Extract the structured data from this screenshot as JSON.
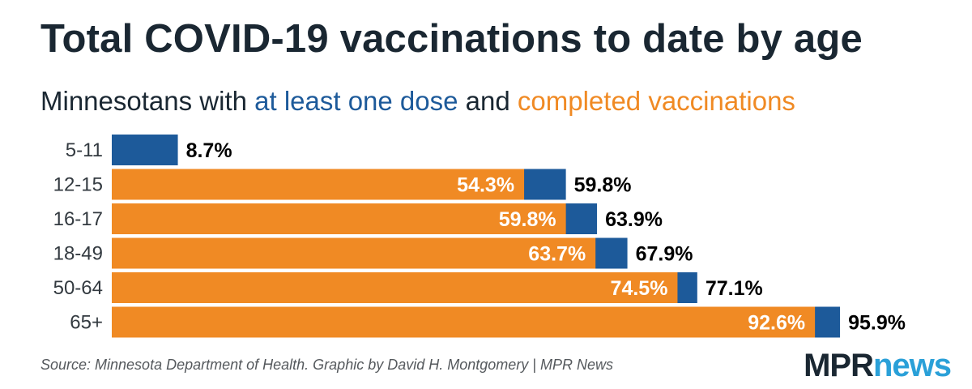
{
  "chart_data": {
    "type": "bar",
    "orientation": "horizontal",
    "title": "Total COVID-19 vaccinations to date by age",
    "subtitle": {
      "prefix": "Minnesotans with ",
      "dose_label": "at least one dose",
      "middle": " and ",
      "complete_label": "completed vaccinations"
    },
    "categories": [
      "5-11",
      "12-15",
      "16-17",
      "18-49",
      "50-64",
      "65+"
    ],
    "series": [
      {
        "name": "at least one dose",
        "color": "#1d5a9a",
        "values": [
          8.7,
          59.8,
          63.9,
          67.9,
          77.1,
          95.9
        ],
        "labels": [
          "8.7%",
          "59.8%",
          "63.9%",
          "67.9%",
          "77.1%",
          "95.9%"
        ]
      },
      {
        "name": "completed vaccinations",
        "color": "#f08a24",
        "values": [
          null,
          54.3,
          59.8,
          63.7,
          74.5,
          92.6
        ],
        "labels": [
          "",
          "54.3%",
          "59.8%",
          "63.7%",
          "74.5%",
          "92.6%"
        ]
      }
    ],
    "xlim": [
      0,
      100
    ],
    "xlabel": "",
    "ylabel": "",
    "grid": false,
    "legend": "inline in subtitle"
  },
  "footer": {
    "source": "Source: Minnesota Department of Health. Graphic by David H. Montgomery | MPR News",
    "logo_mpr": "MPR",
    "logo_news": "news"
  }
}
